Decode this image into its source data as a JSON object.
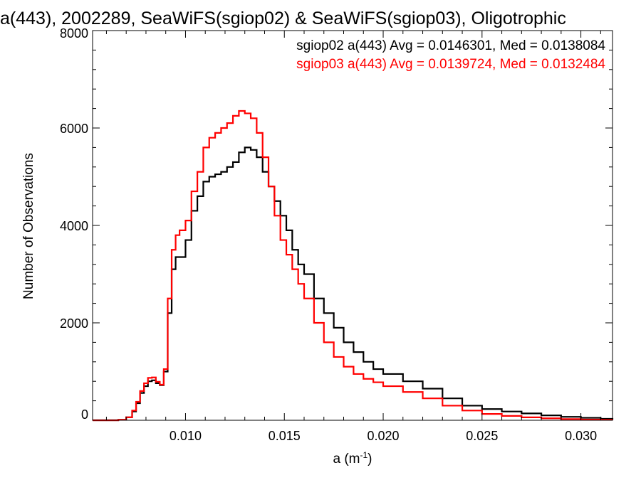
{
  "chart_data": {
    "type": "line",
    "title": "a(443), 2002289, SeaWiFS(sgiop02) & SeaWiFS(sgiop03), Oligotrophic",
    "xlabel": "a (m",
    "xlabel_sup": "-1",
    "xlabel_tail": ")",
    "ylabel": "Number of Observations",
    "xlim": [
      0.0053,
      0.0316
    ],
    "ylim": [
      0,
      8000
    ],
    "x_ticks": [
      0.01,
      0.015,
      0.02,
      0.025,
      0.03
    ],
    "x_tick_labels": [
      "0.010",
      "0.015",
      "0.020",
      "0.025",
      "0.030"
    ],
    "y_ticks": [
      0,
      2000,
      4000,
      6000,
      8000
    ],
    "y_tick_labels": [
      "0",
      "2000",
      "4000",
      "6000",
      "8000"
    ],
    "grid": false,
    "legend_position": "top-right",
    "x": [
      0.0053,
      0.006,
      0.0066,
      0.007,
      0.0073,
      0.0075,
      0.0077,
      0.0079,
      0.0081,
      0.0083,
      0.0085,
      0.0087,
      0.0089,
      0.0091,
      0.0093,
      0.0095,
      0.0097,
      0.01,
      0.0103,
      0.0106,
      0.0109,
      0.0112,
      0.0115,
      0.0118,
      0.0121,
      0.0124,
      0.0127,
      0.013,
      0.0133,
      0.0136,
      0.0139,
      0.0142,
      0.0145,
      0.0148,
      0.0151,
      0.0154,
      0.0157,
      0.016,
      0.0165,
      0.017,
      0.0175,
      0.018,
      0.0185,
      0.019,
      0.0195,
      0.02,
      0.021,
      0.022,
      0.023,
      0.024,
      0.025,
      0.026,
      0.027,
      0.028,
      0.029,
      0.03,
      0.031,
      0.0316
    ],
    "series": [
      {
        "name": "sgiop02",
        "color": "#000000",
        "values": [
          0,
          0,
          10,
          60,
          180,
          350,
          560,
          700,
          800,
          820,
          760,
          720,
          1000,
          2200,
          3100,
          3350,
          3350,
          3700,
          4300,
          4600,
          4900,
          5000,
          5050,
          5100,
          5200,
          5300,
          5500,
          5600,
          5550,
          5400,
          5100,
          4800,
          4500,
          4200,
          3900,
          3500,
          3200,
          3000,
          2500,
          2200,
          1900,
          1600,
          1400,
          1200,
          1050,
          950,
          800,
          650,
          450,
          300,
          230,
          180,
          140,
          100,
          70,
          50,
          30,
          20
        ]
      },
      {
        "name": "sgiop03",
        "color": "#ff0000",
        "values": [
          0,
          0,
          10,
          60,
          200,
          380,
          600,
          760,
          870,
          880,
          790,
          730,
          1050,
          2500,
          3500,
          3800,
          3900,
          4100,
          4700,
          5100,
          5600,
          5800,
          5900,
          6000,
          6100,
          6250,
          6350,
          6300,
          6200,
          5900,
          5400,
          4800,
          4200,
          3700,
          3400,
          3100,
          2800,
          2500,
          2000,
          1600,
          1300,
          1100,
          950,
          850,
          780,
          700,
          580,
          450,
          300,
          200,
          130,
          90,
          60,
          40,
          25,
          15,
          10,
          5
        ]
      }
    ],
    "legend": [
      {
        "text": "sgiop02 a(443) Avg = 0.0146301, Med = 0.0138084",
        "color": "#000000"
      },
      {
        "text": "sgiop03 a(443) Avg = 0.0139724, Med = 0.0132484",
        "color": "#ff0000"
      }
    ]
  }
}
